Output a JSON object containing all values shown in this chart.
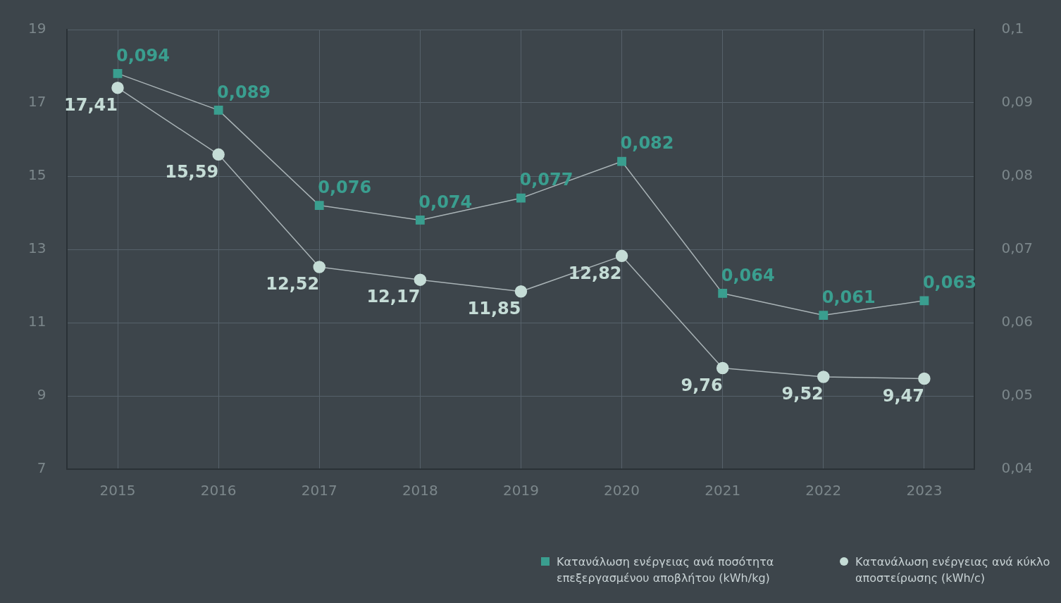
{
  "chart_data": {
    "type": "line",
    "categories": [
      "2015",
      "2016",
      "2017",
      "2018",
      "2019",
      "2020",
      "2021",
      "2022",
      "2023"
    ],
    "series": [
      {
        "name": "Κατανάλωση ενέργειας ανά ποσότητα επεξεργασμένου αποβλήτου (kWh/kg)",
        "color": "#3a9e8f",
        "axis": "y2",
        "marker": "square",
        "values": [
          0.094,
          0.089,
          0.076,
          0.074,
          0.077,
          0.082,
          0.064,
          0.061,
          0.063
        ],
        "value_labels": [
          "0,094",
          "0,089",
          "0,076",
          "0,074",
          "0,077",
          "0,082",
          "0,064",
          "0,061",
          "0,063"
        ]
      },
      {
        "name": "Κατανάλωση ενέργειας ανά κύκλο αποστείρωσης (kWh/c)",
        "color": "#c5dcd6",
        "axis": "y",
        "marker": "circle",
        "values": [
          17.41,
          15.59,
          12.52,
          12.17,
          11.85,
          12.82,
          9.76,
          9.52,
          9.47
        ],
        "value_labels": [
          "17,41",
          "15,59",
          "12,52",
          "12,17",
          "11,85",
          "12,82",
          "9,76",
          "9,52",
          "9,47"
        ]
      }
    ],
    "ylim": [
      7,
      19
    ],
    "yticks": [
      7,
      9,
      11,
      13,
      15,
      17,
      19
    ],
    "y2lim": [
      0.04,
      0.1
    ],
    "y2ticks": [
      {
        "value": 0.04,
        "label": "0,04"
      },
      {
        "value": 0.05,
        "label": "0,05"
      },
      {
        "value": 0.06,
        "label": "0,06"
      },
      {
        "value": 0.07,
        "label": "0,07"
      },
      {
        "value": 0.08,
        "label": "0,08"
      },
      {
        "value": 0.09,
        "label": "0,09"
      },
      {
        "value": 0.1,
        "label": "0,1"
      }
    ],
    "grid": true,
    "legend": "bottom right",
    "line_style": "solid"
  }
}
